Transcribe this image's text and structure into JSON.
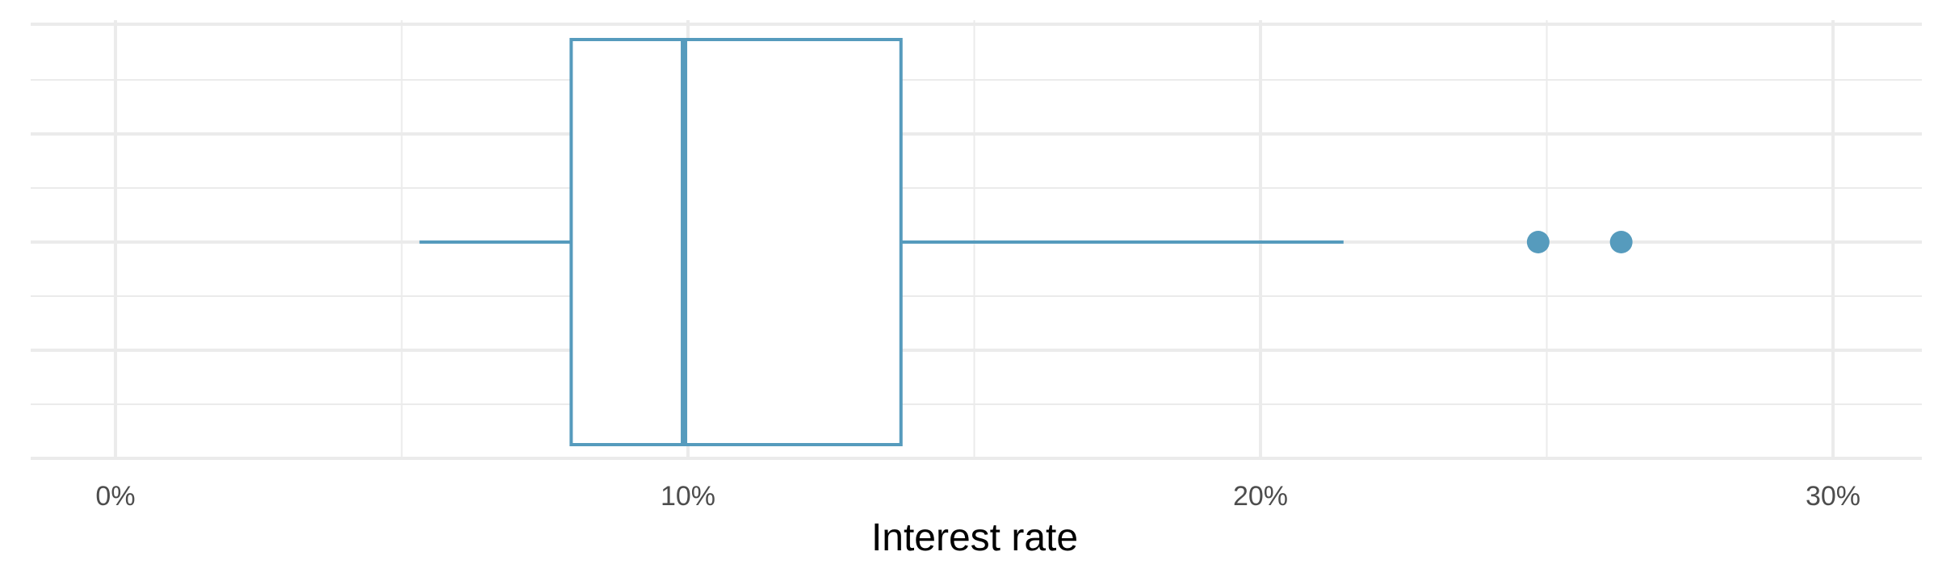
{
  "chart_data": {
    "type": "box",
    "orientation": "horizontal",
    "xlabel": "Interest rate",
    "ylabel": "",
    "xlim": [
      -1.5,
      31.5
    ],
    "x_ticks": [
      0,
      10,
      20,
      30
    ],
    "x_tick_labels": [
      "0%",
      "10%",
      "20%",
      "30%"
    ],
    "x_minor_ticks": [
      5,
      15,
      25
    ],
    "grid": true,
    "box": {
      "whisker_low": 5.31,
      "q1": 7.96,
      "median": 9.93,
      "q3": 13.72,
      "whisker_high": 21.45
    },
    "outliers": [
      24.85,
      26.3
    ],
    "color": "#569bbd"
  }
}
